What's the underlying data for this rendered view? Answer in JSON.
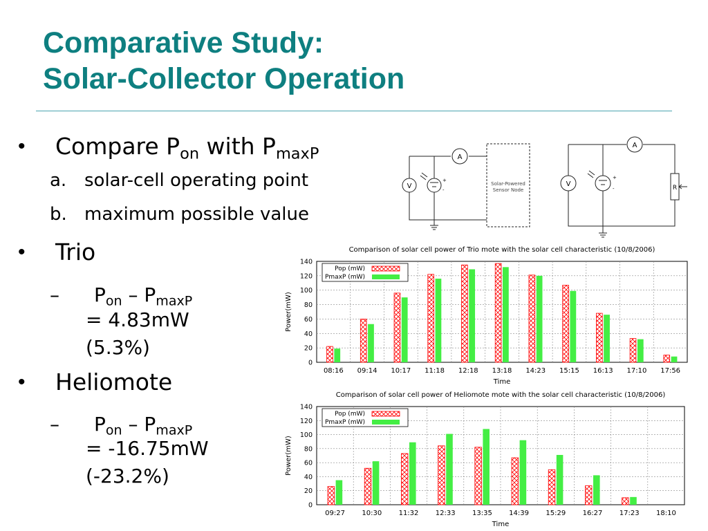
{
  "slide": {
    "title_line1": "Comparative Study:",
    "title_line2": "Solar-Collector Operation"
  },
  "bullets": {
    "b1": {
      "pre": "Compare P",
      "sub1": "on",
      "mid": " with P",
      "sub2": "maxP"
    },
    "b1a": {
      "marker": "a.",
      "text": "solar-cell operating point"
    },
    "b1b": {
      "marker": "b.",
      "text": "maximum possible value"
    },
    "b2": {
      "text": "Trio"
    },
    "b2s": {
      "dash": "–",
      "p1": "P",
      "s1": "on",
      "mid": " – P",
      "s2": "maxP",
      "line2": "= 4.83mW",
      "line3": "(5.3%)"
    },
    "b3": {
      "text": "Heliomote"
    },
    "b3s": {
      "dash": "–",
      "p1": "P",
      "s1": "on",
      "mid": " – P",
      "s2": "maxP",
      "line2": "= -16.75mW",
      "line3": "(-23.2%)"
    }
  },
  "circuit": {
    "ammeter_symbol": "A",
    "voltmeter_symbol": "V",
    "resistor_symbol": "R",
    "node_label_line1": "Solar-Powered",
    "node_label_line2": "Sensor Node",
    "plus": "+",
    "minus": "-"
  },
  "chart_data": [
    {
      "type": "bar",
      "title": "Comparison of solar cell power of Trio mote with the solar cell characteristic (10/8/2006)",
      "xlabel": "Time",
      "ylabel": "Power(mW)",
      "ylim": [
        0,
        140
      ],
      "yticks": [
        "0",
        "20",
        "40",
        "60",
        "80",
        "100",
        "120",
        "140"
      ],
      "grid": true,
      "legend_position": "top-left",
      "categories": [
        "08:16",
        "09:14",
        "10:17",
        "11:18",
        "12:18",
        "13:18",
        "14:23",
        "15:15",
        "16:13",
        "17:10",
        "17:56"
      ],
      "series": [
        {
          "name": "Pop (mW)",
          "color": "#ff0000",
          "values": [
            22,
            60,
            96,
            122,
            135,
            137,
            121,
            107,
            68,
            33,
            10
          ]
        },
        {
          "name": "PmaxP (mW)",
          "color": "#44ee44",
          "values": [
            19,
            53,
            90,
            116,
            129,
            132,
            120,
            99,
            66,
            32,
            8
          ]
        }
      ]
    },
    {
      "type": "bar",
      "title": "Comparison of solar cell power of Heliomote mote with the solar cell characteristic (10/8/2006)",
      "xlabel": "Time",
      "ylabel": "Power(mW)",
      "ylim": [
        0,
        140
      ],
      "yticks": [
        "0",
        "20",
        "40",
        "60",
        "80",
        "100",
        "120",
        "140"
      ],
      "grid": true,
      "legend_position": "top-left",
      "categories": [
        "09:27",
        "10:30",
        "11:32",
        "12:33",
        "13:35",
        "14:39",
        "15:29",
        "16:27",
        "17:23",
        "18:10"
      ],
      "series": [
        {
          "name": "Pop (mW)",
          "color": "#ff0000",
          "values": [
            26,
            52,
            73,
            84,
            82,
            67,
            50,
            27,
            10,
            0
          ]
        },
        {
          "name": "PmaxP (mW)",
          "color": "#44ee44",
          "values": [
            35,
            62,
            89,
            101,
            108,
            92,
            71,
            42,
            11,
            0
          ]
        }
      ]
    }
  ]
}
